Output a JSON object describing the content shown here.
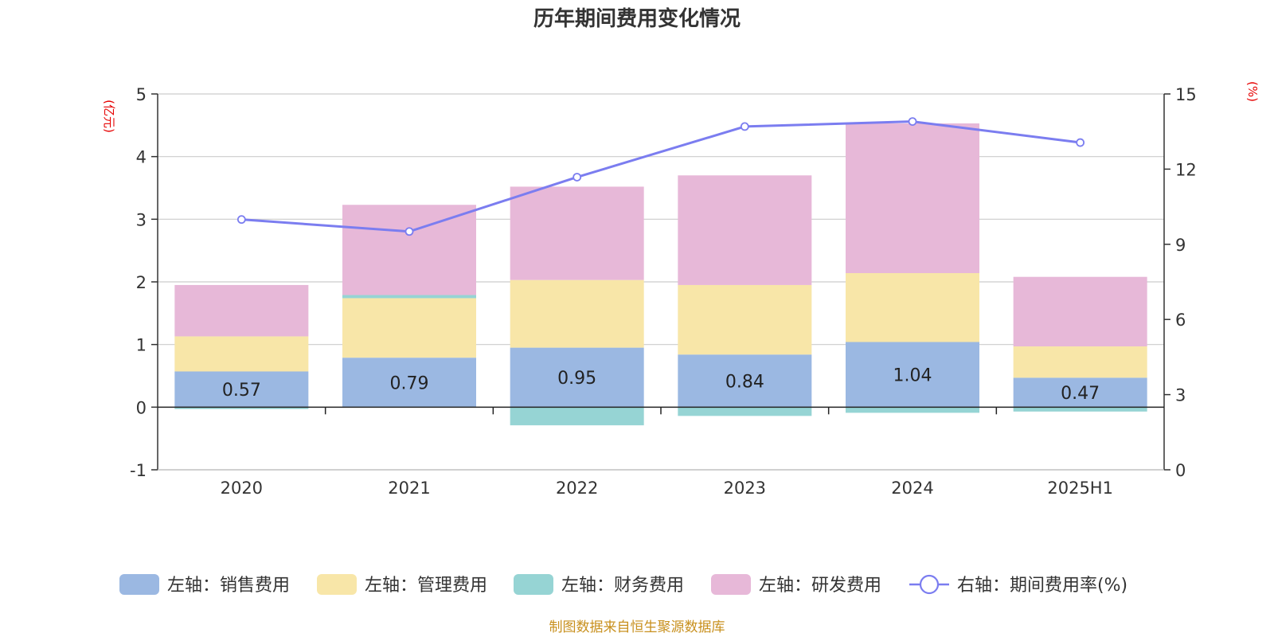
{
  "chart_data": {
    "type": "bar",
    "title": "历年期间费用变化情况",
    "categories": [
      "2020",
      "2021",
      "2022",
      "2023",
      "2024",
      "2025H1"
    ],
    "left_axis": {
      "unit": "(亿元)",
      "range": [
        -1,
        5
      ],
      "ticks": [
        "-1",
        "0",
        "1",
        "2",
        "3",
        "4",
        "5"
      ]
    },
    "right_axis": {
      "unit": "(%)",
      "range": [
        0,
        15
      ],
      "ticks": [
        "0",
        "3",
        "6",
        "9",
        "12",
        "15"
      ]
    },
    "series": [
      {
        "name": "左轴：销售费用",
        "type": "bar",
        "axis": "left",
        "color": "#9bb8e2",
        "values": [
          0.57,
          0.79,
          0.95,
          0.84,
          1.04,
          0.47
        ]
      },
      {
        "name": "左轴：管理费用",
        "type": "bar",
        "axis": "left",
        "color": "#f8e6a8",
        "values": [
          0.56,
          0.95,
          1.08,
          1.11,
          1.1,
          0.5
        ]
      },
      {
        "name": "左轴：财务费用",
        "type": "bar",
        "axis": "left",
        "color": "#96d4d4",
        "values": [
          -0.03,
          0.05,
          -0.29,
          -0.14,
          -0.09,
          -0.07
        ]
      },
      {
        "name": "左轴：研发费用",
        "type": "bar",
        "axis": "left",
        "color": "#e7b8d8",
        "values": [
          0.82,
          1.44,
          1.49,
          1.75,
          2.39,
          1.11
        ]
      },
      {
        "name": "右轴：期间费用率(%)",
        "type": "line",
        "axis": "right",
        "color": "#7b7df0",
        "values": [
          9.99,
          9.51,
          11.68,
          13.7,
          13.9,
          13.06
        ]
      }
    ],
    "data_labels": [
      "0.57",
      "0.79",
      "0.95",
      "0.84",
      "1.04",
      "0.47"
    ],
    "grid": true,
    "legend_position": "bottom"
  },
  "source": "制图数据来自恒生聚源数据库"
}
